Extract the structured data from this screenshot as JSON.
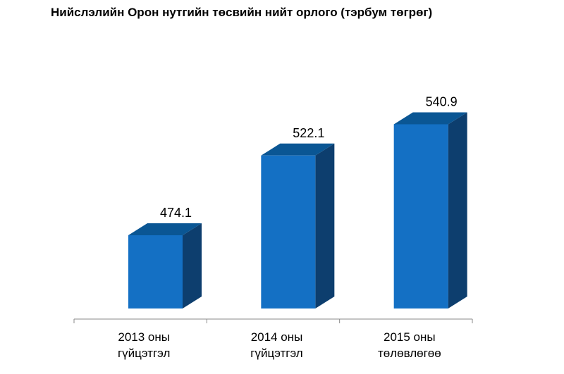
{
  "chart_data": {
    "type": "bar",
    "title": "Нийслэлийн Орон нутгийн төсвийн нийт орлого (тэрбум төгрөг)",
    "categories": [
      [
        "2013 оны",
        "гүйцэтгэл"
      ],
      [
        "2014 оны",
        "гүйцэтгэл"
      ],
      [
        "2015 оны",
        "төлөвлөгөө"
      ]
    ],
    "values": [
      474.1,
      522.1,
      540.9
    ],
    "value_labels": [
      "474.1",
      "522.1",
      "540.9"
    ],
    "xlabel": "",
    "ylabel": "",
    "ylim": [
      430,
      550
    ],
    "grid": false,
    "legend": "none",
    "style": "3d-column",
    "colors": {
      "front": "#1470c4",
      "top": "#0a5694",
      "side": "#0d3e6e",
      "axis": "#8a8a8a"
    }
  }
}
